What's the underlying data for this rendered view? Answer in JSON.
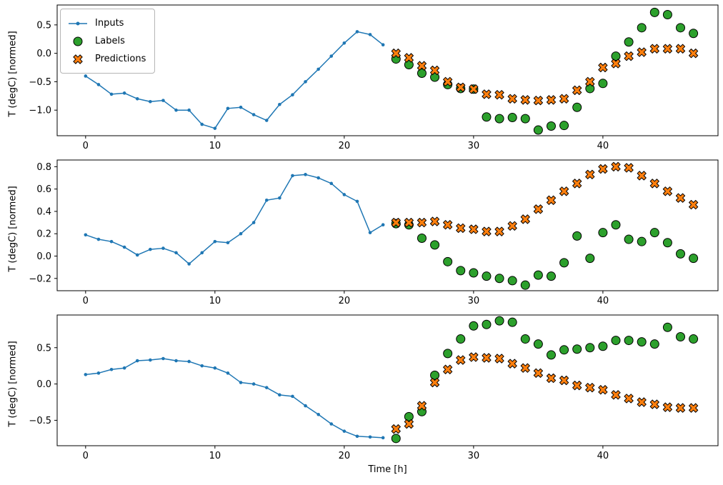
{
  "figure": {
    "ylabel": "T (degC) [normed]",
    "xlabel": "Time [h]",
    "background": "#ffffff"
  },
  "legend": {
    "items": [
      {
        "label": "Inputs"
      },
      {
        "label": "Labels"
      },
      {
        "label": "Predictions"
      }
    ]
  },
  "colors": {
    "inputs": "#1f77b4",
    "labels": "#2ca02c",
    "predictions": "#ff7f0e",
    "marker_edge": "#000000",
    "axes": "#000000"
  },
  "chart_data": [
    {
      "type": "line+scatter",
      "title": "",
      "ylabel": "T (degC) [normed]",
      "xlim": [
        -2.2,
        48.9
      ],
      "ylim": [
        -1.45,
        0.85
      ],
      "xticks": [
        0,
        10,
        20,
        30,
        40
      ],
      "yticks": [
        -1.0,
        -0.5,
        0.0,
        0.5
      ],
      "series": [
        {
          "name": "Inputs",
          "type": "line",
          "marker": "dot",
          "color": "#1f77b4",
          "x_start": 0,
          "y": [
            -0.4,
            -0.55,
            -0.72,
            -0.7,
            -0.8,
            -0.85,
            -0.83,
            -1.0,
            -1.0,
            -1.25,
            -1.32,
            -0.97,
            -0.95,
            -1.08,
            -1.18,
            -0.9,
            -0.73,
            -0.5,
            -0.28,
            -0.05,
            0.18,
            0.38,
            0.33,
            0.15
          ]
        },
        {
          "name": "Labels",
          "type": "scatter",
          "marker": "circle",
          "color": "#2ca02c",
          "x_start": 24,
          "y": [
            -0.1,
            -0.2,
            -0.35,
            -0.42,
            -0.55,
            -0.62,
            -0.63,
            -1.12,
            -1.15,
            -1.13,
            -1.15,
            -1.35,
            -1.28,
            -1.27,
            -0.95,
            -0.62,
            -0.53,
            -0.05,
            0.2,
            0.45,
            0.72,
            0.68,
            0.45,
            0.35
          ]
        },
        {
          "name": "Predictions",
          "type": "scatter",
          "marker": "X",
          "color": "#ff7f0e",
          "x_start": 24,
          "y": [
            0.0,
            -0.08,
            -0.22,
            -0.3,
            -0.5,
            -0.6,
            -0.63,
            -0.72,
            -0.73,
            -0.8,
            -0.82,
            -0.83,
            -0.82,
            -0.8,
            -0.65,
            -0.5,
            -0.25,
            -0.18,
            -0.05,
            0.02,
            0.08,
            0.08,
            0.08,
            0.0
          ]
        }
      ]
    },
    {
      "type": "line+scatter",
      "title": "",
      "ylabel": "T (degC) [normed]",
      "xlim": [
        -2.2,
        48.9
      ],
      "ylim": [
        -0.31,
        0.86
      ],
      "xticks": [
        0,
        10,
        20,
        30,
        40
      ],
      "yticks": [
        -0.2,
        0.0,
        0.2,
        0.4,
        0.6,
        0.8
      ],
      "series": [
        {
          "name": "Inputs",
          "type": "line",
          "marker": "dot",
          "color": "#1f77b4",
          "x_start": 0,
          "y": [
            0.19,
            0.15,
            0.13,
            0.08,
            0.01,
            0.06,
            0.07,
            0.03,
            -0.07,
            0.03,
            0.13,
            0.12,
            0.2,
            0.3,
            0.5,
            0.52,
            0.72,
            0.73,
            0.7,
            0.65,
            0.55,
            0.49,
            0.21,
            0.28
          ]
        },
        {
          "name": "Labels",
          "type": "scatter",
          "marker": "circle",
          "color": "#2ca02c",
          "x_start": 24,
          "y": [
            0.29,
            0.28,
            0.16,
            0.1,
            -0.05,
            -0.13,
            -0.15,
            -0.18,
            -0.2,
            -0.22,
            -0.26,
            -0.17,
            -0.18,
            -0.06,
            0.18,
            -0.02,
            0.21,
            0.28,
            0.15,
            0.13,
            0.21,
            0.12,
            0.02,
            -0.02
          ]
        },
        {
          "name": "Predictions",
          "type": "scatter",
          "marker": "X",
          "color": "#ff7f0e",
          "x_start": 24,
          "y": [
            0.3,
            0.3,
            0.3,
            0.31,
            0.28,
            0.25,
            0.24,
            0.22,
            0.22,
            0.27,
            0.33,
            0.42,
            0.5,
            0.58,
            0.65,
            0.73,
            0.78,
            0.8,
            0.79,
            0.72,
            0.65,
            0.58,
            0.52,
            0.46
          ]
        }
      ]
    },
    {
      "type": "line+scatter",
      "title": "",
      "ylabel": "T (degC) [normed]",
      "xlabel": "Time [h]",
      "xlim": [
        -2.2,
        48.9
      ],
      "ylim": [
        -0.85,
        0.95
      ],
      "xticks": [
        0,
        10,
        20,
        30,
        40
      ],
      "yticks": [
        -0.5,
        0.0,
        0.5
      ],
      "series": [
        {
          "name": "Inputs",
          "type": "line",
          "marker": "dot",
          "color": "#1f77b4",
          "x_start": 0,
          "y": [
            0.13,
            0.15,
            0.2,
            0.22,
            0.32,
            0.33,
            0.35,
            0.32,
            0.31,
            0.25,
            0.22,
            0.15,
            0.02,
            0.0,
            -0.05,
            -0.15,
            -0.17,
            -0.3,
            -0.42,
            -0.55,
            -0.65,
            -0.72,
            -0.73,
            -0.74
          ]
        },
        {
          "name": "Labels",
          "type": "scatter",
          "marker": "circle",
          "color": "#2ca02c",
          "x_start": 24,
          "y": [
            -0.75,
            -0.45,
            -0.38,
            0.12,
            0.42,
            0.62,
            0.8,
            0.82,
            0.87,
            0.85,
            0.62,
            0.55,
            0.4,
            0.47,
            0.48,
            0.5,
            0.52,
            0.6,
            0.6,
            0.58,
            0.55,
            0.78,
            0.65,
            0.62
          ]
        },
        {
          "name": "Predictions",
          "type": "scatter",
          "marker": "X",
          "color": "#ff7f0e",
          "x_start": 24,
          "y": [
            -0.62,
            -0.55,
            -0.3,
            0.02,
            0.2,
            0.33,
            0.37,
            0.36,
            0.35,
            0.28,
            0.22,
            0.15,
            0.08,
            0.05,
            -0.02,
            -0.05,
            -0.08,
            -0.15,
            -0.2,
            -0.25,
            -0.28,
            -0.32,
            -0.33,
            -0.33
          ]
        }
      ]
    }
  ]
}
